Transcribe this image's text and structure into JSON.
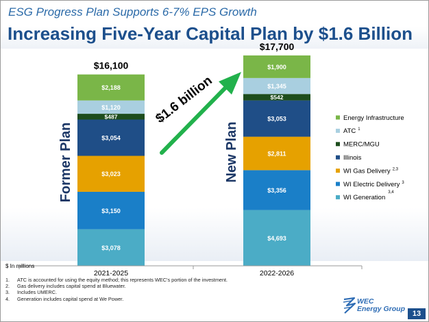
{
  "slide": {
    "subtitle": "ESG Progress Plan Supports 6-7% EPS Growth",
    "title": "Increasing Five-Year Capital Plan by $1.6 Billion",
    "page_number": "13"
  },
  "logo": {
    "line1": "WEC",
    "line2": "Energy Group",
    "color": "#2f6db5"
  },
  "footnotes": [
    {
      "num": "1.",
      "text": "ATC is accounted for using the equity method; this represents WEC's portion of the investment."
    },
    {
      "num": "2.",
      "text": "Gas delivery includes capital spend at Bluewater."
    },
    {
      "num": "3.",
      "text": "Includes UMERC."
    },
    {
      "num": "4.",
      "text": "Generation includes capital spend at We Power."
    }
  ],
  "chart_data": {
    "type": "bar",
    "stacked": true,
    "units_label": "$ In millions",
    "categories": [
      "2021-2025",
      "2022-2026"
    ],
    "plan_labels": [
      "Former Plan",
      "New Plan"
    ],
    "totals": [
      "$16,100",
      "$17,700"
    ],
    "increase_annotation": "$1.6 billion",
    "series": [
      {
        "name": "WI Generation",
        "sup": "3,4",
        "color": "#4bacc6",
        "values": [
          3078,
          4693
        ],
        "labels": [
          "$3,078",
          "$4,693"
        ]
      },
      {
        "name": "WI Electric Delivery",
        "sup": "3",
        "color": "#1a7fc8",
        "values": [
          3150,
          3356
        ],
        "labels": [
          "$3,150",
          "$3,356"
        ]
      },
      {
        "name": "WI Gas Delivery",
        "sup": "2,3",
        "color": "#e6a100",
        "values": [
          3023,
          2811
        ],
        "labels": [
          "$3,023",
          "$2,811"
        ]
      },
      {
        "name": "Illinois",
        "sup": "",
        "color": "#1f4e87",
        "values": [
          3054,
          3053
        ],
        "labels": [
          "$3,054",
          "$3,053"
        ]
      },
      {
        "name": "MERC/MGU",
        "sup": "",
        "color": "#1d4d1d",
        "values": [
          487,
          542
        ],
        "labels": [
          "$487",
          "$542"
        ]
      },
      {
        "name": "ATC",
        "sup": "1",
        "color": "#a9cfe0",
        "values": [
          1120,
          1345
        ],
        "labels": [
          "$1,120",
          "$1,345"
        ]
      },
      {
        "name": "Energy Infrastructure",
        "sup": "",
        "color": "#7ab648",
        "values": [
          2188,
          1900
        ],
        "labels": [
          "$2,188",
          "$1,900"
        ]
      }
    ],
    "legend_position": "right",
    "legend_order": [
      "Energy Infrastructure",
      "ATC",
      "MERC/MGU",
      "Illinois",
      "WI Gas Delivery",
      "WI Electric Delivery",
      "WI Generation"
    ],
    "ylim": [
      0,
      18000
    ]
  }
}
